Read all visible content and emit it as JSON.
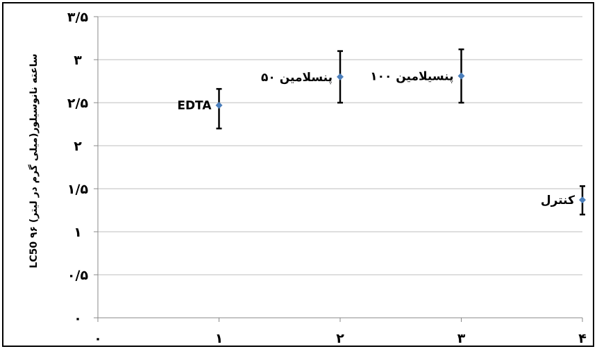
{
  "chart_data": {
    "type": "scatter",
    "title": "",
    "xlabel": "",
    "ylabel": "LC50 ۹۶ ساعته نانوسیلور(میلی گرم در لیتر)",
    "xlim": [
      0,
      4
    ],
    "ylim": [
      0,
      3.5
    ],
    "x_ticks": [
      {
        "value": 0,
        "label": "۰"
      },
      {
        "value": 1,
        "label": "۱"
      },
      {
        "value": 2,
        "label": "۲"
      },
      {
        "value": 3,
        "label": "۳"
      },
      {
        "value": 4,
        "label": "۴"
      }
    ],
    "y_ticks": [
      {
        "value": 0,
        "label": "۰"
      },
      {
        "value": 0.5,
        "label": "۰/۵"
      },
      {
        "value": 1,
        "label": "۱"
      },
      {
        "value": 1.5,
        "label": "۱/۵"
      },
      {
        "value": 2,
        "label": "۲"
      },
      {
        "value": 2.5,
        "label": "۲/۵"
      },
      {
        "value": 3,
        "label": "۳"
      },
      {
        "value": 3.5,
        "label": "۳/۵"
      }
    ],
    "grid": {
      "horizontal": true,
      "vertical": false
    },
    "marker_color": "#4a7ebb",
    "points": [
      {
        "label": "EDTA",
        "x": 1,
        "y": 2.47,
        "err_low": 2.2,
        "err_high": 2.66
      },
      {
        "label": "پنسلامین ۵۰",
        "x": 2,
        "y": 2.8,
        "err_low": 2.5,
        "err_high": 3.1
      },
      {
        "label": "پنسیلامین ۱۰۰",
        "x": 3,
        "y": 2.81,
        "err_low": 2.5,
        "err_high": 3.12
      },
      {
        "label": "کنترل",
        "x": 4,
        "y": 1.37,
        "err_low": 1.2,
        "err_high": 1.53
      }
    ]
  }
}
